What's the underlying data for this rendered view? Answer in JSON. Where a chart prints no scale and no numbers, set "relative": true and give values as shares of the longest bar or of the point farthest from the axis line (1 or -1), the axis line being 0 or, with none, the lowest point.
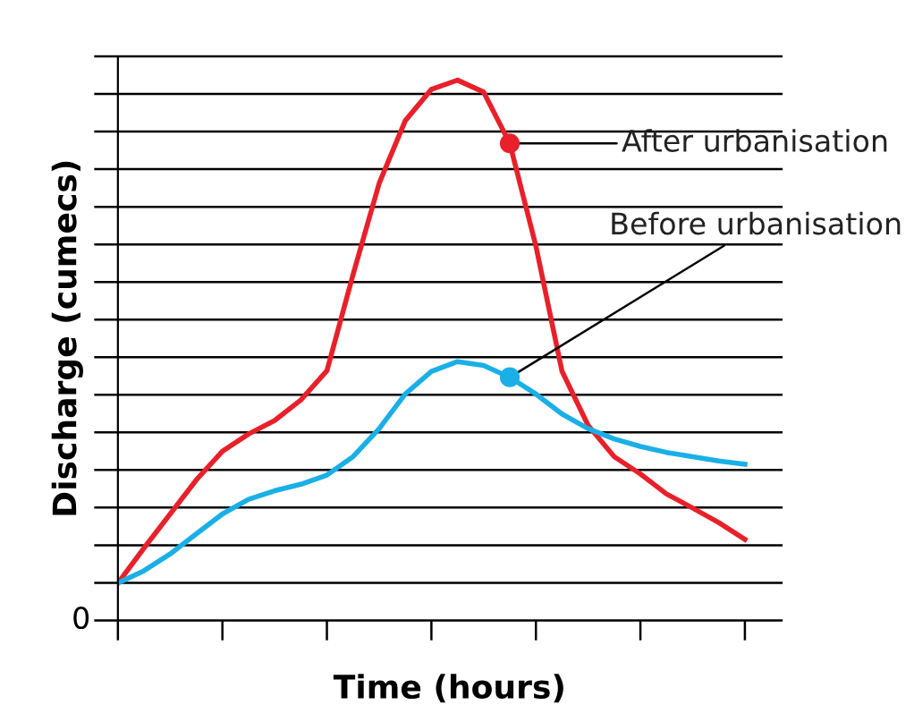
{
  "chart_data": {
    "type": "line",
    "relative": true,
    "xlabel": "Time (hours)",
    "ylabel": "Discharge (cumecs)",
    "categories": [
      null,
      null,
      null,
      null,
      null,
      null,
      null,
      null,
      null,
      null,
      null,
      null,
      null,
      null,
      null,
      null,
      null,
      null,
      null,
      null,
      null,
      null,
      null,
      null,
      null
    ],
    "grid": "y",
    "marker": "none",
    "line_style": "solid",
    "series": [
      {
        "name": "After urbanisation",
        "color": "#e8202a",
        "values": [
          0.069,
          0.134,
          0.197,
          0.26,
          0.313,
          0.345,
          0.37,
          0.408,
          0.462,
          0.64,
          0.809,
          0.925,
          0.983,
          1.0,
          0.978,
          0.883,
          0.693,
          0.461,
          0.361,
          0.303,
          0.271,
          0.234,
          0.208,
          0.181,
          0.15
        ]
      },
      {
        "name": "Before urbanisation",
        "color": "#1aafe6",
        "values": [
          0.069,
          0.092,
          0.123,
          0.16,
          0.197,
          0.224,
          0.24,
          0.252,
          0.269,
          0.303,
          0.355,
          0.419,
          0.461,
          0.479,
          0.472,
          0.45,
          0.419,
          0.382,
          0.355,
          0.336,
          0.322,
          0.311,
          0.303,
          0.295,
          0.289
        ]
      }
    ],
    "annotations": [
      "0"
    ]
  }
}
